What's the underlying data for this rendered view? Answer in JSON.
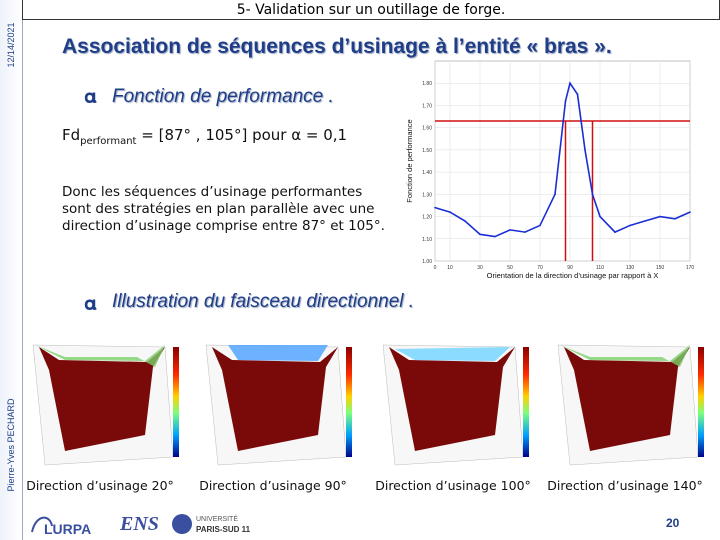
{
  "header": {
    "title": "5- Validation sur un outillage de forge."
  },
  "sidebar": {
    "date": "12/14/2021",
    "author": "Pierre-Yves PECHARD"
  },
  "slide": {
    "title": "Association de séquences d’usinage à l’entité « bras ».",
    "bullet1": "Fonction de performance .",
    "fd_prefix": "Fd",
    "fd_sub": "performant",
    "fd_rest": " = [87° , 105°]  pour ",
    "fd_alpha": "α",
    "fd_end": " = 0,1",
    "paragraph": "Donc les séquences d’usinage performantes sont des stratégies en plan parallèle avec une direction d’usinage comprise entre 87° et 105°.",
    "bullet2": "Illustration du faisceau directionnel ."
  },
  "captions": [
    "Direction d’usinage 20°",
    "Direction d’usinage 90°",
    "Direction d’usinage 100°",
    "Direction d’usinage 140°"
  ],
  "page_number": "20",
  "logos": {
    "left": "LURPA",
    "mid": "ENS",
    "right_top": "UNIVERSITÉ",
    "right_bottom": "PARIS-SUD 11"
  },
  "chart_data": {
    "type": "line",
    "xlabel": "Orientation de la direction d’usinage par rapport à X",
    "ylabel": "Fonction de performance",
    "x": [
      0,
      10,
      20,
      30,
      40,
      50,
      60,
      70,
      80,
      87,
      90,
      95,
      100,
      105,
      110,
      120,
      130,
      140,
      150,
      160,
      170
    ],
    "values": [
      1.24,
      1.22,
      1.18,
      1.12,
      1.11,
      1.14,
      1.13,
      1.16,
      1.3,
      1.72,
      1.8,
      1.75,
      1.5,
      1.3,
      1.2,
      1.13,
      1.16,
      1.18,
      1.2,
      1.19,
      1.22
    ],
    "xticks": [
      "0",
      "10",
      "30",
      "50",
      "70",
      "90",
      "110",
      "130",
      "150",
      "170"
    ],
    "yticks": [
      "1.00",
      "1.10",
      "1.20",
      "1.30",
      "1.40",
      "1.50",
      "1.60",
      "1.70",
      "1.80"
    ],
    "xlim": [
      0,
      170
    ],
    "ylim": [
      1.0,
      1.9
    ],
    "threshold": 1.63,
    "vlines": [
      87,
      105
    ],
    "line_color": "#1a2ed6",
    "marker_color": "#d01010"
  },
  "colors": {
    "accent": "#1f3e87",
    "dark_red": "#7a0a0a"
  }
}
